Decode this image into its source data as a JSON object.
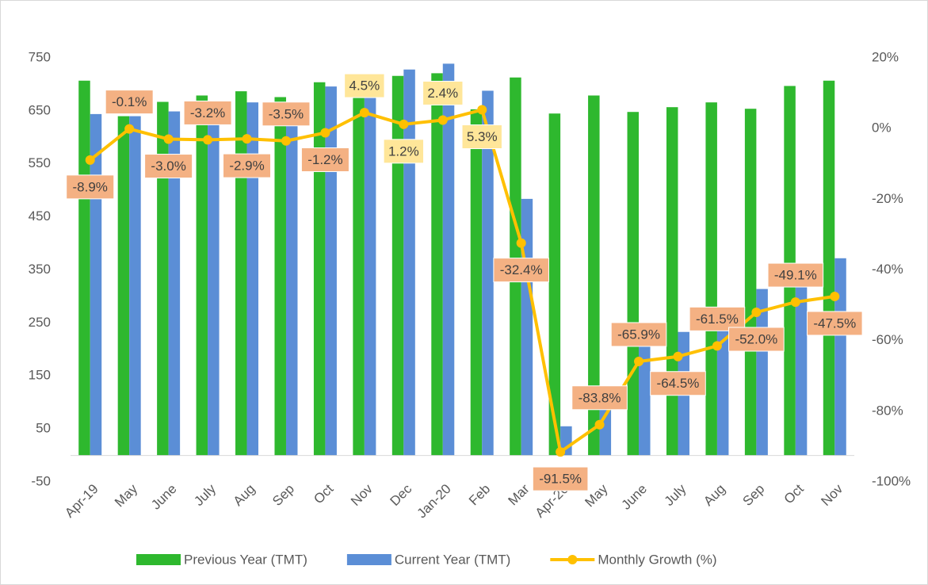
{
  "chart_data": {
    "type": "bar_line",
    "categories": [
      "Apr-19",
      "May",
      "June",
      "July",
      "Aug",
      "Sep",
      "Oct",
      "Nov",
      "Dec",
      "Jan-20",
      "Feb",
      "Mar",
      "Apr-20",
      "May",
      "June",
      "July",
      "Aug",
      "Sep",
      "Oct",
      "Nov"
    ],
    "series": [
      {
        "name": "Previous Year (TMT)",
        "color": "#2eb82e",
        "type": "bar",
        "values": [
          707,
          640,
          667,
          679,
          687,
          676,
          704,
          676,
          716,
          721,
          653,
          713,
          645,
          679,
          648,
          657,
          666,
          654,
          697,
          707
        ]
      },
      {
        "name": "Current Year (TMT)",
        "color": "#5b8ed6",
        "type": "bar",
        "values": [
          644,
          640,
          649,
          657,
          666,
          652,
          696,
          707,
          728,
          739,
          688,
          484,
          55,
          110,
          221,
          233,
          256,
          314,
          355,
          372
        ]
      },
      {
        "name": "Monthly Growth (%)",
        "color": "#ffc000",
        "type": "line",
        "axis": "y2",
        "values": [
          -8.9,
          -0.1,
          -3.0,
          -3.2,
          -2.9,
          -3.5,
          -1.2,
          4.5,
          1.2,
          2.4,
          5.3,
          -32.4,
          -91.5,
          -83.8,
          -65.9,
          -64.5,
          -61.5,
          -52.0,
          -49.1,
          -47.5
        ],
        "value_labels": [
          "-8.9%",
          "-0.1%",
          "-3.0%",
          "-3.2%",
          "-2.9%",
          "-3.5%",
          "-1.2%",
          "4.5%",
          "1.2%",
          "2.4%",
          "5.3%",
          "-32.4%",
          "-91.5%",
          "-83.8%",
          "-65.9%",
          "-64.5%",
          "-61.5%",
          "-52.0%",
          "-49.1%",
          "-47.5%"
        ]
      }
    ],
    "ylim": [
      -50,
      750
    ],
    "yticks": [
      -50,
      50,
      150,
      250,
      350,
      450,
      550,
      650,
      750
    ],
    "y2lim": [
      -100,
      20
    ],
    "y2ticks": [
      {
        "value": -100,
        "label": "-100%"
      },
      {
        "value": -80,
        "label": "-80%"
      },
      {
        "value": -60,
        "label": "-60%"
      },
      {
        "value": -40,
        "label": "-40%"
      },
      {
        "value": -20,
        "label": "-20%"
      },
      {
        "value": 0,
        "label": "0%"
      },
      {
        "value": 20,
        "label": "20%"
      }
    ],
    "legend": "bottom"
  }
}
